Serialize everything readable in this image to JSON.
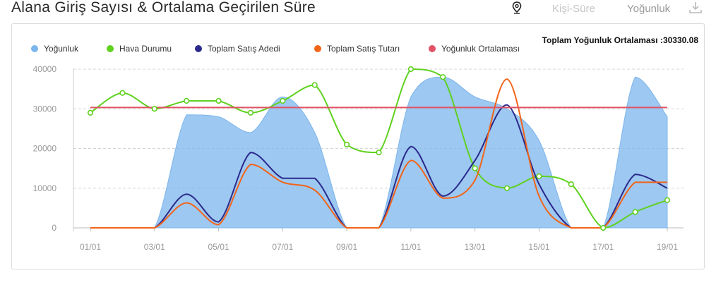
{
  "header": {
    "title": "Alana Giriş Sayısı & Ortalama Geçirilen Süre",
    "tab_kisi_sure": "Kişi-Süre",
    "tab_yogunluk": "Yoğunluk"
  },
  "icons": {
    "pin": "map-pin-icon",
    "download": "download-icon"
  },
  "chart_data": {
    "type": "line",
    "title": "",
    "annotation": "Toplam Yoğunluk Ortalaması :30330.08",
    "x_ticks": [
      "01/01",
      "03/01",
      "05/01",
      "07/01",
      "09/01",
      "11/01",
      "13/01",
      "15/01",
      "17/01",
      "19/01"
    ],
    "y_ticks": [
      "0",
      "10000",
      "20000",
      "30000",
      "40000"
    ],
    "ylim": [
      0,
      40000
    ],
    "grid": "horizontal dashed",
    "legend_position": "top-left",
    "x": [
      "01/01",
      "02/01",
      "03/01",
      "04/01",
      "05/01",
      "06/01",
      "07/01",
      "08/01",
      "09/01",
      "10/01",
      "11/01",
      "12/01",
      "13/01",
      "14/01",
      "15/01",
      "16/01",
      "17/01",
      "18/01",
      "19/01"
    ],
    "series": [
      {
        "name": "Yoğunluk",
        "type": "area",
        "color": "#7cb5ec",
        "values": [
          0,
          0,
          0,
          28500,
          28000,
          24000,
          33000,
          24000,
          0,
          0,
          33000,
          38000,
          33000,
          30000,
          22000,
          0,
          0,
          38000,
          28000
        ]
      },
      {
        "name": "Hava Durumu",
        "type": "line",
        "color": "#5fd11f",
        "markers": true,
        "values": [
          29000,
          34000,
          30000,
          32000,
          32000,
          29000,
          32000,
          36000,
          21000,
          19000,
          40000,
          38000,
          15000,
          10000,
          13000,
          11000,
          0,
          4000,
          7000
        ]
      },
      {
        "name": "Toplam Satış Adedi",
        "type": "line",
        "color": "#2b2a8c",
        "values": [
          0,
          0,
          0,
          8500,
          1500,
          19000,
          12500,
          12500,
          0,
          0,
          20500,
          8000,
          17000,
          31000,
          11000,
          0,
          0,
          13500,
          10000
        ]
      },
      {
        "name": "Toplam Satış Tutarı",
        "type": "line",
        "color": "#f26418",
        "values": [
          0,
          0,
          0,
          6300,
          800,
          16000,
          11500,
          9500,
          0,
          0,
          17000,
          7500,
          12000,
          37500,
          8000,
          0,
          0,
          11500,
          11500
        ]
      },
      {
        "name": "Yoğunluk Ortalaması",
        "type": "line",
        "color": "#e05264",
        "values": [
          30330.08,
          30330.08,
          30330.08,
          30330.08,
          30330.08,
          30330.08,
          30330.08,
          30330.08,
          30330.08,
          30330.08,
          30330.08,
          30330.08,
          30330.08,
          30330.08,
          30330.08,
          30330.08,
          30330.08,
          30330.08,
          30330.08
        ]
      }
    ]
  }
}
